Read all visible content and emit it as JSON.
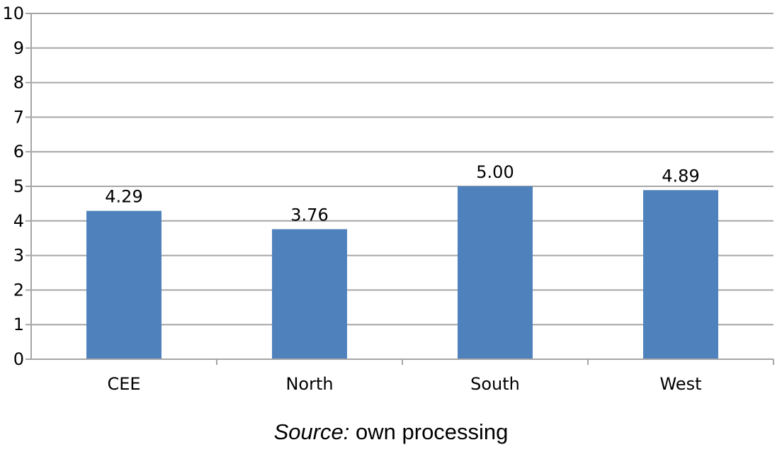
{
  "chart_data": {
    "type": "bar",
    "categories": [
      "CEE",
      "North",
      "South",
      "West"
    ],
    "values": [
      4.29,
      3.76,
      5.0,
      4.89
    ],
    "data_labels": [
      "4.29",
      "3.76",
      "5.00",
      "4.89"
    ],
    "yticks": [
      "0",
      "1",
      "2",
      "3",
      "4",
      "5",
      "6",
      "7",
      "8",
      "9",
      "10"
    ],
    "ylim": [
      0,
      10
    ],
    "grid": true,
    "bar_color": "#4f81bd",
    "gridline_color": "#a6a6a6",
    "title": "",
    "xlabel": "",
    "ylabel": ""
  },
  "source": {
    "label": "Source:",
    "text": " own processing"
  }
}
